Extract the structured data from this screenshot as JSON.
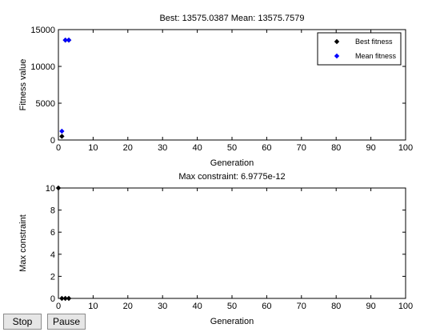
{
  "chart_data": [
    {
      "type": "scatter",
      "title": "Best: 13575.0387 Mean: 13575.7579",
      "xlabel": "Generation",
      "ylabel": "Fitness value",
      "xlim": [
        0,
        100
      ],
      "ylim": [
        0,
        15000
      ],
      "xticks": [
        "0",
        "10",
        "20",
        "30",
        "40",
        "50",
        "60",
        "70",
        "80",
        "90",
        "100"
      ],
      "yticks": [
        "0",
        "5000",
        "10000",
        "15000"
      ],
      "legend": "top-right",
      "series": [
        {
          "name": "Best fitness",
          "color": "#000000",
          "x": [
            1,
            2,
            3
          ],
          "y": [
            500,
            13570,
            13575
          ]
        },
        {
          "name": "Mean fitness",
          "color": "#0000ff",
          "x": [
            1,
            2,
            3
          ],
          "y": [
            1200,
            13580,
            13576
          ]
        }
      ]
    },
    {
      "type": "scatter",
      "title": "Max constraint: 6.9775e-12",
      "xlabel": "Generation",
      "ylabel": "Max constraint",
      "xlim": [
        0,
        100
      ],
      "ylim": [
        0,
        10
      ],
      "xticks": [
        "0",
        "10",
        "20",
        "30",
        "40",
        "50",
        "60",
        "70",
        "80",
        "90",
        "100"
      ],
      "yticks": [
        "0",
        "2",
        "4",
        "6",
        "8",
        "10"
      ],
      "series": [
        {
          "color": "#000000",
          "x": [
            0,
            1,
            2,
            3
          ],
          "y": [
            10,
            0,
            0,
            0
          ]
        }
      ]
    }
  ],
  "buttons": {
    "stop_label": "Stop",
    "pause_label": "Pause"
  }
}
